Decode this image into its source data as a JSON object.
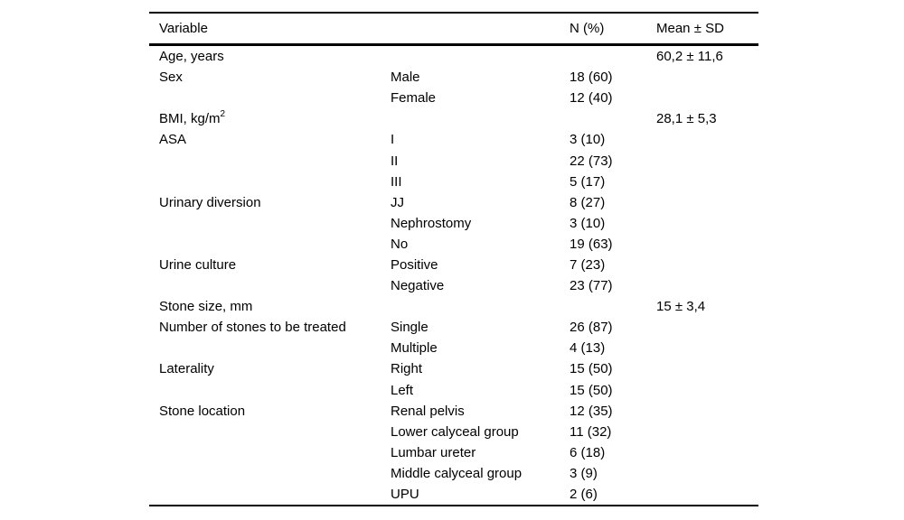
{
  "colors": {
    "background": "#ffffff",
    "text": "#000000",
    "rule": "#000000"
  },
  "table": {
    "headers": {
      "variable": "Variable",
      "subcategory": "",
      "n": "N (%)",
      "mean": "Mean ± SD"
    },
    "rows": [
      {
        "variable": "Age, years",
        "subcategory": "",
        "n": "",
        "mean": "60,2 ± 11,6"
      },
      {
        "variable": "Sex",
        "subcategory": "Male",
        "n": "18 (60)",
        "mean": ""
      },
      {
        "variable": "",
        "subcategory": "Female",
        "n": "12 (40)",
        "mean": ""
      },
      {
        "variable": "BMI, kg/m",
        "variable_sup": "2",
        "subcategory": "",
        "n": "",
        "mean": "28,1 ± 5,3"
      },
      {
        "variable": "ASA",
        "subcategory": "I",
        "n": "3 (10)",
        "mean": ""
      },
      {
        "variable": "",
        "subcategory": "II",
        "n": "22 (73)",
        "mean": ""
      },
      {
        "variable": "",
        "subcategory": "III",
        "n": "5 (17)",
        "mean": ""
      },
      {
        "variable": "Urinary diversion",
        "subcategory": "JJ",
        "n": "8 (27)",
        "mean": ""
      },
      {
        "variable": "",
        "subcategory": "Nephrostomy",
        "n": "3 (10)",
        "mean": ""
      },
      {
        "variable": "",
        "subcategory": "No",
        "n": "19 (63)",
        "mean": ""
      },
      {
        "variable": "Urine culture",
        "subcategory": "Positive",
        "n": "7 (23)",
        "mean": ""
      },
      {
        "variable": "",
        "subcategory": "Negative",
        "n": "23 (77)",
        "mean": ""
      },
      {
        "variable": "Stone size, mm",
        "subcategory": "",
        "n": "",
        "mean": "15 ± 3,4"
      },
      {
        "variable": "Number of stones to be treated",
        "subcategory": "Single",
        "n": "26 (87)",
        "mean": ""
      },
      {
        "variable": "",
        "subcategory": "Multiple",
        "n": "4 (13)",
        "mean": ""
      },
      {
        "variable": "Laterality",
        "subcategory": "Right",
        "n": "15 (50)",
        "mean": ""
      },
      {
        "variable": "",
        "subcategory": "Left",
        "n": "15 (50)",
        "mean": ""
      },
      {
        "variable": "Stone location",
        "subcategory": "Renal pelvis",
        "n": "12 (35)",
        "mean": ""
      },
      {
        "variable": "",
        "subcategory": "Lower calyceal group",
        "n": "11 (32)",
        "mean": ""
      },
      {
        "variable": "",
        "subcategory": "Lumbar ureter",
        "n": "6 (18)",
        "mean": ""
      },
      {
        "variable": "",
        "subcategory": "Middle calyceal group",
        "n": "3 (9)",
        "mean": ""
      },
      {
        "variable": "",
        "subcategory": "UPU",
        "n": "2 (6)",
        "mean": ""
      }
    ]
  }
}
